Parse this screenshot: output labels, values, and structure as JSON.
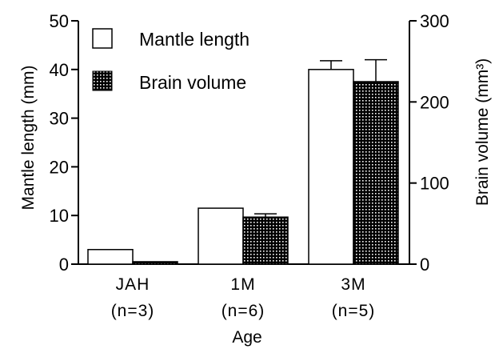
{
  "chart_data": {
    "type": "bar",
    "categories": [
      "JAH",
      "1M",
      "3M"
    ],
    "category_sublabels": [
      "(n=3)",
      "(n=6)",
      "(n=5)"
    ],
    "xlabel": "Age",
    "y_left": {
      "label": "Mantle length (mm)",
      "range": [
        0,
        50
      ],
      "ticks": [
        "0",
        "10",
        "20",
        "30",
        "40",
        "50"
      ]
    },
    "y_right": {
      "label": "Brain volume (mm³)",
      "range": [
        0,
        300
      ],
      "ticks": [
        "0",
        "100",
        "200",
        "300"
      ]
    },
    "series": [
      {
        "name": "Mantle length",
        "axis": "left",
        "style": "open",
        "values": [
          3,
          11.5,
          40
        ],
        "error": [
          0,
          0,
          1.8
        ]
      },
      {
        "name": "Brain volume",
        "axis": "right",
        "style": "dotted",
        "values": [
          3,
          58,
          225
        ],
        "error": [
          0,
          4,
          27
        ]
      }
    ],
    "legend_position": "top-left",
    "grid": false
  }
}
